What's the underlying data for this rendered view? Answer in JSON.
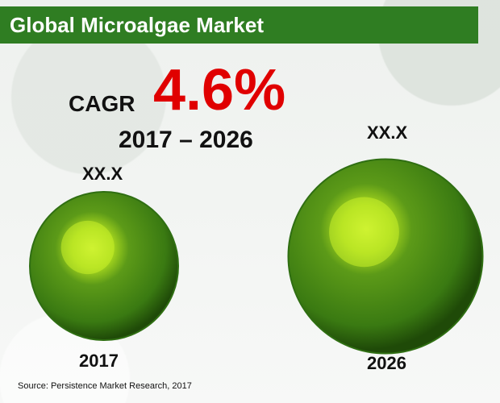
{
  "title": "Global Microalgae Market",
  "cagr": {
    "label": "CAGR",
    "value": "4.6%",
    "period": "2017 – 2026"
  },
  "chart_data": {
    "type": "bubble",
    "categories": [
      "2017",
      "2026"
    ],
    "value_labels": [
      "XX.X",
      "XX.X"
    ],
    "relative_sizes": [
      1.0,
      1.31
    ]
  },
  "source": "Source: Persistence Market Research, 2017",
  "colors": {
    "title_bar": "#2f7d22",
    "cagr_value": "#e00000",
    "bubble_dark": "#2f6e12",
    "bubble_light": "#c8f02a"
  }
}
